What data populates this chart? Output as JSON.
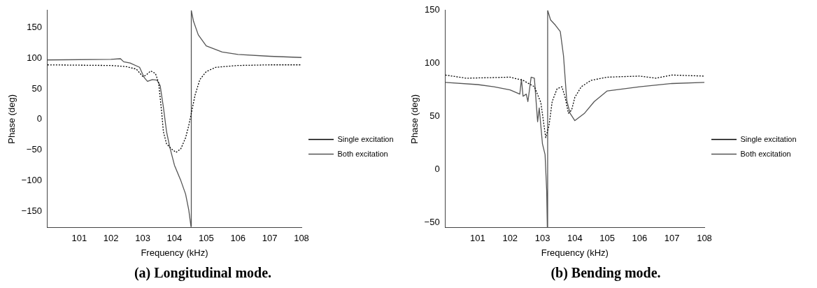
{
  "chart_data": [
    {
      "type": "line",
      "title": "(a) Longitudinal mode.",
      "xlabel": "Frequency (kHz)",
      "ylabel": "Phase (deg)",
      "xlim": [
        100,
        108
      ],
      "ylim": [
        -177,
        178
      ],
      "xticks": [
        101,
        102,
        103,
        104,
        105,
        106,
        107,
        108
      ],
      "yticks": [
        -150,
        -100,
        -50,
        0,
        50,
        100,
        150
      ],
      "grid": false,
      "legend": "right",
      "series": [
        {
          "name": "Single excitation",
          "color": "#000000",
          "line_style": "dotted",
          "x": [
            100,
            102,
            102.5,
            102.8,
            103,
            103.1,
            103.25,
            103.4,
            103.5,
            103.6,
            103.65,
            103.75,
            103.9,
            104.05,
            104.2,
            104.35,
            104.45,
            104.55,
            104.65,
            104.8,
            105,
            105.3,
            106,
            107,
            108
          ],
          "values": [
            89,
            88,
            86,
            82,
            70,
            72,
            79,
            75,
            60,
            10,
            -20,
            -40,
            -48,
            -54,
            -48,
            -30,
            -10,
            15,
            40,
            65,
            78,
            85,
            88,
            89,
            89
          ]
        },
        {
          "name": "Both excitation",
          "color": "#555555",
          "line_style": "solid",
          "x": [
            100,
            102,
            102.3,
            102.4,
            102.6,
            102.9,
            103.05,
            103.15,
            103.3,
            103.45,
            103.55,
            103.65,
            103.75,
            103.85,
            104,
            104.2,
            104.35,
            104.45,
            104.52,
            104.53,
            104.6,
            104.75,
            105,
            105.5,
            106,
            107,
            108
          ],
          "values": [
            97,
            98,
            99,
            94,
            92,
            85,
            68,
            62,
            65,
            64,
            55,
            20,
            -20,
            -45,
            -75,
            -100,
            -122,
            -148,
            -175,
            178,
            160,
            138,
            120,
            110,
            106,
            103,
            101
          ]
        }
      ]
    },
    {
      "type": "line",
      "title": "(b) Bending mode.",
      "xlabel": "Frequency (kHz)",
      "ylabel": "Phase (deg)",
      "xlim": [
        100,
        108
      ],
      "ylim": [
        -55,
        150
      ],
      "xticks": [
        101,
        102,
        103,
        104,
        105,
        106,
        107,
        108
      ],
      "yticks": [
        -50,
        0,
        50,
        100,
        150
      ],
      "grid": false,
      "legend": "right",
      "series": [
        {
          "name": "Single excitation",
          "color": "#000000",
          "line_style": "dotted",
          "x": [
            100,
            100.65,
            102,
            102.4,
            102.75,
            102.95,
            103.1,
            103.2,
            103.3,
            103.45,
            103.6,
            103.7,
            103.8,
            103.9,
            104,
            104.2,
            104.5,
            105,
            106,
            106.5,
            107,
            108
          ],
          "values": [
            89,
            86,
            87,
            84,
            78,
            63,
            30,
            41,
            64,
            76,
            78,
            68,
            53,
            56,
            68,
            78,
            84,
            87,
            88,
            86,
            89,
            88
          ]
        },
        {
          "name": "Both excitation",
          "color": "#555555",
          "line_style": "solid",
          "x": [
            100,
            101,
            101.5,
            102,
            102.3,
            102.35,
            102.4,
            102.5,
            102.55,
            102.65,
            102.75,
            102.85,
            102.9,
            103,
            103.08,
            103.13,
            103.15,
            103.16,
            103.25,
            103.4,
            103.55,
            103.65,
            103.75,
            103.85,
            104,
            104.3,
            104.6,
            105,
            106,
            107,
            108
          ],
          "values": [
            82,
            80,
            78,
            75,
            71,
            85,
            69,
            71,
            64,
            87,
            86,
            45,
            58,
            24,
            14,
            -20,
            -55,
            150,
            141,
            136,
            130,
            107,
            65,
            53,
            46,
            53,
            64,
            74,
            78,
            81,
            82
          ]
        }
      ]
    }
  ]
}
